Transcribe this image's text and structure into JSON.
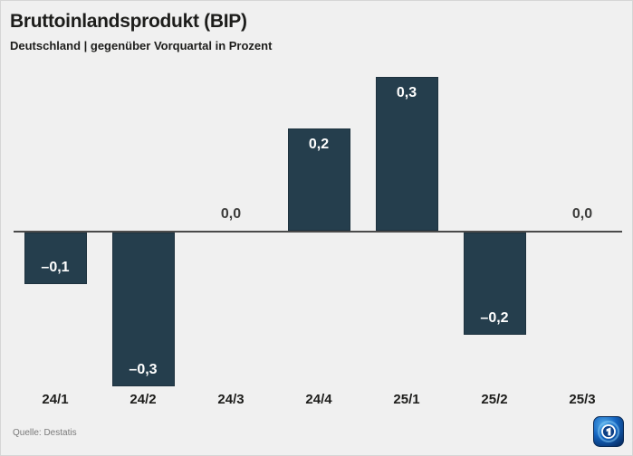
{
  "header": {
    "title": "Bruttoinlandsprodukt (BIP)",
    "subtitle": "Deutschland | gegenüber Vorquartal in Prozent"
  },
  "footer": {
    "source": "Quelle: Destatis",
    "logo": "ard-das-erste-logo"
  },
  "colors": {
    "background": "#f0f0f0",
    "bar": "#253e4d",
    "axis": "#4a4a4a",
    "text_dark": "#1d1d1b",
    "zero_label": "#3c3c3b",
    "value_label": "#ffffff",
    "source_text": "#7a7a7a",
    "logo_blue": "#1464c0"
  },
  "chart_data": {
    "type": "bar",
    "title": "Bruttoinlandsprodukt (BIP)",
    "subtitle": "Deutschland | gegenüber Vorquartal in Prozent",
    "categories": [
      "24/1",
      "24/2",
      "24/3",
      "24/4",
      "25/1",
      "25/2",
      "25/3"
    ],
    "values": [
      -0.1,
      -0.3,
      0.0,
      0.2,
      0.3,
      -0.2,
      0.0
    ],
    "value_labels": [
      "–0,1",
      "–0,3",
      "0,0",
      "0,2",
      "0,3",
      "–0,2",
      "0,0"
    ],
    "xlabel": "",
    "ylabel": "",
    "ylim": [
      -0.35,
      0.35
    ],
    "grid": false,
    "legend": false,
    "bar_color": "#253e4d",
    "source": "Quelle: Destatis"
  }
}
